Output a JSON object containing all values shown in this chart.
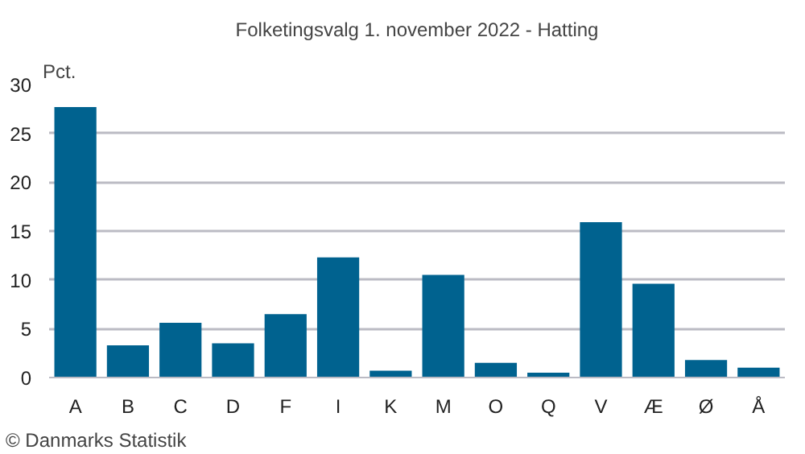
{
  "chart_data": {
    "type": "bar",
    "title": "Folketingsvalg 1. november 2022 - Hatting",
    "ylabel": "Pct.",
    "categories": [
      "A",
      "B",
      "C",
      "D",
      "F",
      "I",
      "K",
      "M",
      "O",
      "Q",
      "V",
      "Æ",
      "Ø",
      "Å"
    ],
    "values": [
      27.7,
      3.3,
      5.6,
      3.5,
      6.5,
      12.3,
      0.7,
      10.5,
      1.5,
      0.5,
      15.9,
      9.6,
      1.8,
      1.0
    ],
    "color": "#00628f",
    "ylim": [
      0,
      30
    ],
    "yticks": [
      0,
      5,
      10,
      15,
      20,
      25,
      30
    ],
    "grid": "y",
    "annotations": [
      "© Danmarks Statistik"
    ]
  }
}
